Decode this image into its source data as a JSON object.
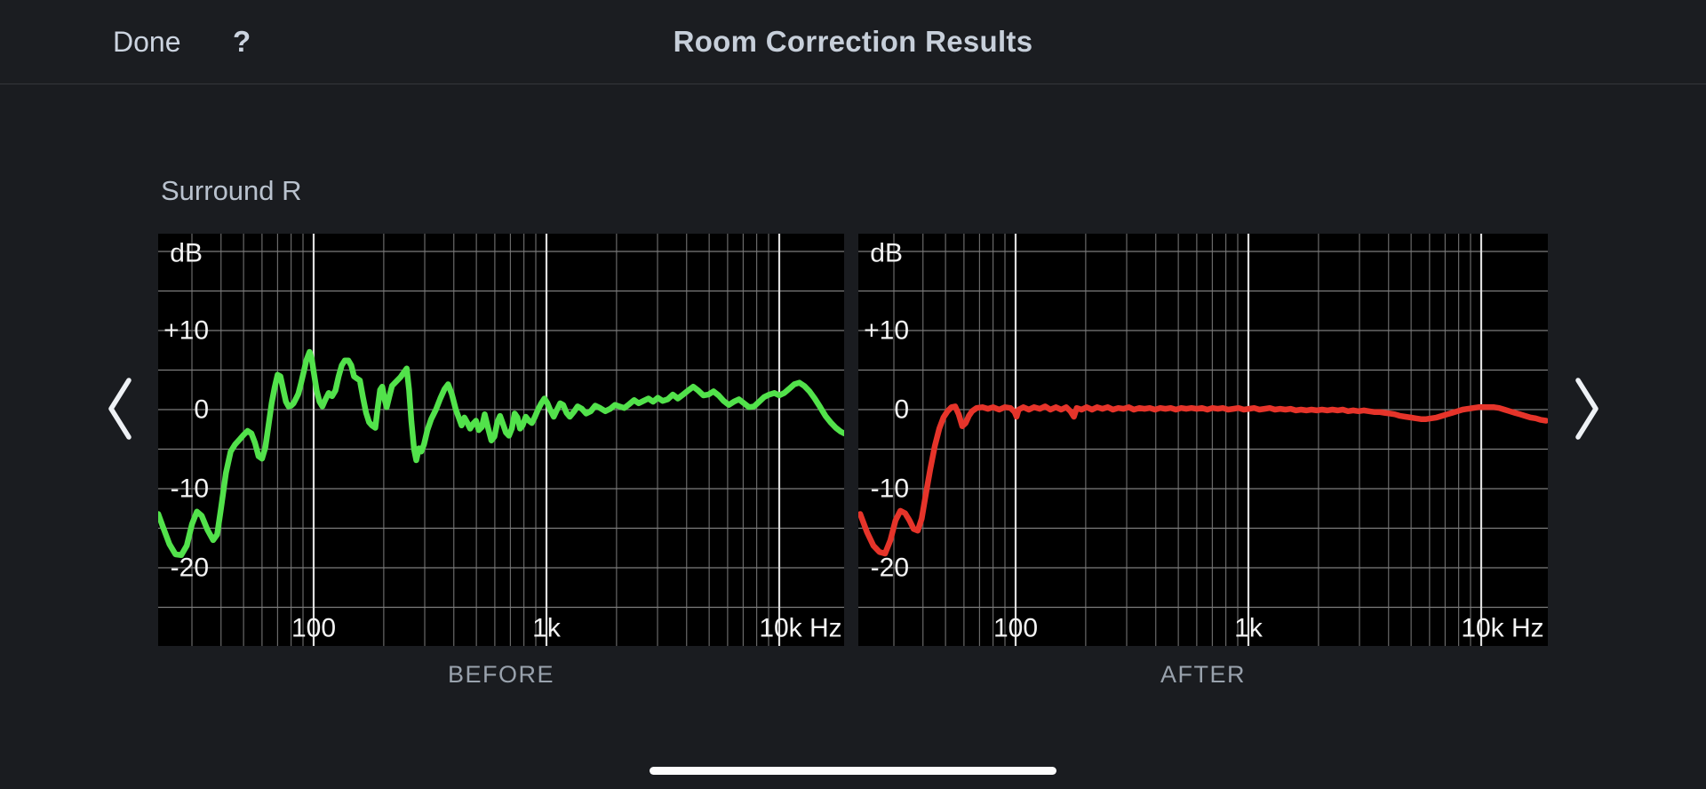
{
  "header": {
    "done_label": "Done",
    "help_label": "?",
    "title": "Room Correction Results"
  },
  "channel_label": "Surround R",
  "chart_style": {
    "plot_background": "#000000",
    "grid_minor_color": "#696969",
    "grid_horizontal_color": "#7d7d7d",
    "grid_decade_color": "#dedede",
    "tick_label_color": "#f4f4f4",
    "caption_color": "#99a2ad",
    "before_line_color": "#52e24b",
    "after_line_color": "#e6342a"
  },
  "chart_data": [
    {
      "id": "before",
      "type": "line",
      "caption": "BEFORE",
      "line_color": "#52e24b",
      "x": {
        "scale": "log",
        "min_hz": 21.5,
        "max_hz": 19000,
        "ticks": [
          {
            "hz": 100,
            "label": "100"
          },
          {
            "hz": 1000,
            "label": "1k"
          },
          {
            "hz": 10000,
            "label": "10k Hz"
          }
        ]
      },
      "y": {
        "unit": "dB",
        "min_db": -29.9,
        "max_db": 22.2,
        "grid_step_db": 5,
        "ticks": [
          {
            "db": 10,
            "label": "+10"
          },
          {
            "db": 0,
            "label": "0"
          },
          {
            "db": -10,
            "label": "-10"
          },
          {
            "db": -20,
            "label": "-20"
          }
        ]
      },
      "points": [
        [
          21.5,
          -13.2
        ],
        [
          22.5,
          -14.8
        ],
        [
          24,
          -17
        ],
        [
          25.5,
          -18.3
        ],
        [
          27,
          -18.4
        ],
        [
          28.5,
          -17.2
        ],
        [
          30,
          -14.5
        ],
        [
          31.5,
          -12.9
        ],
        [
          33,
          -13.4
        ],
        [
          35,
          -15.2
        ],
        [
          37,
          -16.5
        ],
        [
          38.5,
          -15.8
        ],
        [
          40,
          -12.5
        ],
        [
          42,
          -8
        ],
        [
          44,
          -5.3
        ],
        [
          46,
          -4.4
        ],
        [
          48,
          -3.8
        ],
        [
          50,
          -3.2
        ],
        [
          52,
          -2.7
        ],
        [
          54,
          -3
        ],
        [
          56,
          -4.2
        ],
        [
          58,
          -5.9
        ],
        [
          60,
          -6.2
        ],
        [
          62,
          -4.8
        ],
        [
          64,
          -2
        ],
        [
          66,
          0.8
        ],
        [
          68,
          2.8
        ],
        [
          70,
          4.4
        ],
        [
          72,
          4.2
        ],
        [
          74,
          2.6
        ],
        [
          76,
          1
        ],
        [
          78,
          0.4
        ],
        [
          80,
          0.5
        ],
        [
          82,
          0.8
        ],
        [
          84,
          1.4
        ],
        [
          86,
          2
        ],
        [
          88,
          3.2
        ],
        [
          91,
          5
        ],
        [
          93,
          6.2
        ],
        [
          96,
          7.3
        ],
        [
          98,
          6.5
        ],
        [
          100,
          4.8
        ],
        [
          103,
          2.4
        ],
        [
          106,
          1
        ],
        [
          109,
          0.4
        ],
        [
          112,
          1.2
        ],
        [
          116,
          2.1
        ],
        [
          120,
          1.7
        ],
        [
          124,
          2.4
        ],
        [
          128,
          4.2
        ],
        [
          132,
          5.6
        ],
        [
          136,
          6.2
        ],
        [
          141,
          6.2
        ],
        [
          145,
          5.6
        ],
        [
          149,
          4.2
        ],
        [
          154,
          3.9
        ],
        [
          158,
          3.7
        ],
        [
          163,
          1.5
        ],
        [
          168,
          -0.4
        ],
        [
          173,
          -1.6
        ],
        [
          178,
          -2
        ],
        [
          184,
          -2.3
        ],
        [
          188,
          0
        ],
        [
          193,
          2.5
        ],
        [
          197,
          2.9
        ],
        [
          202,
          1.2
        ],
        [
          206,
          0.3
        ],
        [
          211,
          1.6
        ],
        [
          217,
          3
        ],
        [
          227,
          3.6
        ],
        [
          236,
          4.1
        ],
        [
          244,
          4.7
        ],
        [
          251,
          5.2
        ],
        [
          257,
          2.5
        ],
        [
          263,
          -1.5
        ],
        [
          270,
          -5
        ],
        [
          276,
          -6.4
        ],
        [
          283,
          -4.9
        ],
        [
          290,
          -5.3
        ],
        [
          298,
          -4.4
        ],
        [
          308,
          -2.6
        ],
        [
          320,
          -1.2
        ],
        [
          335,
          0
        ],
        [
          350,
          1.4
        ],
        [
          365,
          2.6
        ],
        [
          378,
          3.2
        ],
        [
          392,
          2
        ],
        [
          408,
          0
        ],
        [
          420,
          -1
        ],
        [
          432,
          -2
        ],
        [
          444,
          -1
        ],
        [
          456,
          -1.6
        ],
        [
          470,
          -2.4
        ],
        [
          484,
          -1.8
        ],
        [
          498,
          -1.4
        ],
        [
          512,
          -2.6
        ],
        [
          528,
          -2.2
        ],
        [
          543,
          -0.6
        ],
        [
          560,
          -2.2
        ],
        [
          580,
          -3.9
        ],
        [
          598,
          -3.4
        ],
        [
          615,
          -1.6
        ],
        [
          632,
          -0.8
        ],
        [
          650,
          -1.8
        ],
        [
          670,
          -2.9
        ],
        [
          690,
          -3.3
        ],
        [
          710,
          -2.4
        ],
        [
          730,
          -0.5
        ],
        [
          750,
          -1
        ],
        [
          770,
          -2.4
        ],
        [
          790,
          -2
        ],
        [
          815,
          -0.9
        ],
        [
          840,
          -1.4
        ],
        [
          865,
          -1.7
        ],
        [
          890,
          -1
        ],
        [
          920,
          0
        ],
        [
          950,
          0.8
        ],
        [
          980,
          1.4
        ],
        [
          1010,
          0.8
        ],
        [
          1040,
          -0.1
        ],
        [
          1075,
          -0.9
        ],
        [
          1110,
          0
        ],
        [
          1145,
          0.8
        ],
        [
          1180,
          0.6
        ],
        [
          1220,
          -0.4
        ],
        [
          1260,
          -0.9
        ],
        [
          1310,
          -0.3
        ],
        [
          1360,
          0.4
        ],
        [
          1420,
          0.1
        ],
        [
          1480,
          -0.5
        ],
        [
          1550,
          -0.2
        ],
        [
          1620,
          0.5
        ],
        [
          1700,
          0.2
        ],
        [
          1790,
          -0.2
        ],
        [
          1880,
          0.1
        ],
        [
          1970,
          0.6
        ],
        [
          2060,
          0.4
        ],
        [
          2160,
          0.2
        ],
        [
          2270,
          0.7
        ],
        [
          2380,
          1.2
        ],
        [
          2490,
          0.8
        ],
        [
          2610,
          1.1
        ],
        [
          2740,
          1.4
        ],
        [
          2870,
          1
        ],
        [
          3010,
          1.5
        ],
        [
          3160,
          1.1
        ],
        [
          3320,
          1.3
        ],
        [
          3490,
          1.9
        ],
        [
          3670,
          1.4
        ],
        [
          3860,
          1.9
        ],
        [
          4060,
          2.4
        ],
        [
          4270,
          2.9
        ],
        [
          4490,
          2.4
        ],
        [
          4720,
          1.8
        ],
        [
          4960,
          1.9
        ],
        [
          5220,
          2.3
        ],
        [
          5490,
          1.8
        ],
        [
          5770,
          1.1
        ],
        [
          6070,
          0.6
        ],
        [
          6380,
          1
        ],
        [
          6710,
          1.3
        ],
        [
          7060,
          0.8
        ],
        [
          7420,
          0.3
        ],
        [
          7800,
          0.4
        ],
        [
          8200,
          1
        ],
        [
          8620,
          1.6
        ],
        [
          9060,
          1.9
        ],
        [
          9530,
          2.1
        ],
        [
          10000,
          1.8
        ],
        [
          10500,
          2.1
        ],
        [
          11000,
          2.6
        ],
        [
          11600,
          3.2
        ],
        [
          12200,
          3.4
        ],
        [
          12800,
          3
        ],
        [
          13500,
          2.3
        ],
        [
          14200,
          1.4
        ],
        [
          15000,
          0.3
        ],
        [
          15800,
          -0.8
        ],
        [
          16600,
          -1.6
        ],
        [
          17500,
          -2.3
        ],
        [
          18400,
          -2.8
        ],
        [
          19000,
          -3
        ]
      ]
    },
    {
      "id": "after",
      "type": "line",
      "caption": "AFTER",
      "line_color": "#e6342a",
      "x": {
        "scale": "log",
        "min_hz": 21.5,
        "max_hz": 19000,
        "ticks": [
          {
            "hz": 100,
            "label": "100"
          },
          {
            "hz": 1000,
            "label": "1k"
          },
          {
            "hz": 10000,
            "label": "10k Hz"
          }
        ]
      },
      "y": {
        "unit": "dB",
        "min_db": -29.9,
        "max_db": 22.2,
        "grid_step_db": 5,
        "ticks": [
          {
            "db": 10,
            "label": "+10"
          },
          {
            "db": 0,
            "label": "0"
          },
          {
            "db": -10,
            "label": "-10"
          },
          {
            "db": -20,
            "label": "-20"
          }
        ]
      },
      "points": [
        [
          21.5,
          -13.2
        ],
        [
          23,
          -15.5
        ],
        [
          24.5,
          -17.2
        ],
        [
          26,
          -18
        ],
        [
          27.5,
          -18.2
        ],
        [
          29,
          -16.5
        ],
        [
          30.5,
          -14
        ],
        [
          32,
          -12.8
        ],
        [
          33.5,
          -13.1
        ],
        [
          35,
          -14
        ],
        [
          36.5,
          -15.1
        ],
        [
          38,
          -15.3
        ],
        [
          39.5,
          -13.8
        ],
        [
          41,
          -11
        ],
        [
          43,
          -7.5
        ],
        [
          45,
          -4.6
        ],
        [
          47,
          -2.4
        ],
        [
          49,
          -1
        ],
        [
          51,
          -0.2
        ],
        [
          53,
          0.3
        ],
        [
          55,
          0.4
        ],
        [
          57,
          -0.6
        ],
        [
          59,
          -2.1
        ],
        [
          61,
          -1.7
        ],
        [
          63,
          -0.8
        ],
        [
          65,
          -0.2
        ],
        [
          68,
          0.2
        ],
        [
          72,
          0.3
        ],
        [
          76,
          0.1
        ],
        [
          80,
          0.3
        ],
        [
          85,
          0
        ],
        [
          90,
          0.3
        ],
        [
          95,
          0.2
        ],
        [
          99,
          -0.3
        ],
        [
          101,
          -0.9
        ],
        [
          103,
          0
        ],
        [
          108,
          0.3
        ],
        [
          114,
          0
        ],
        [
          120,
          0.3
        ],
        [
          127,
          0.1
        ],
        [
          134,
          0.4
        ],
        [
          141,
          0
        ],
        [
          149,
          0.3
        ],
        [
          157,
          0
        ],
        [
          165,
          0.3
        ],
        [
          172,
          -0.2
        ],
        [
          178,
          -0.9
        ],
        [
          183,
          0.2
        ],
        [
          192,
          0
        ],
        [
          202,
          0.3
        ],
        [
          213,
          0
        ],
        [
          224,
          0.3
        ],
        [
          236,
          0.1
        ],
        [
          249,
          0.3
        ],
        [
          262,
          0
        ],
        [
          276,
          0.2
        ],
        [
          291,
          0.1
        ],
        [
          306,
          0.3
        ],
        [
          322,
          0
        ],
        [
          340,
          0.2
        ],
        [
          358,
          0.1
        ],
        [
          377,
          0.2
        ],
        [
          397,
          0
        ],
        [
          418,
          0.2
        ],
        [
          440,
          0.1
        ],
        [
          464,
          0.2
        ],
        [
          488,
          0
        ],
        [
          514,
          0.2
        ],
        [
          542,
          0.1
        ],
        [
          570,
          0.2
        ],
        [
          600,
          0.1
        ],
        [
          632,
          0.2
        ],
        [
          666,
          0
        ],
        [
          701,
          0.2
        ],
        [
          738,
          0.1
        ],
        [
          777,
          0.2
        ],
        [
          818,
          0
        ],
        [
          862,
          0.1
        ],
        [
          907,
          0.2
        ],
        [
          955,
          0
        ],
        [
          1006,
          0.1
        ],
        [
          1059,
          0.2
        ],
        [
          1115,
          0
        ],
        [
          1174,
          0.1
        ],
        [
          1236,
          0.2
        ],
        [
          1301,
          0
        ],
        [
          1370,
          0.1
        ],
        [
          1443,
          0
        ],
        [
          1519,
          0.1
        ],
        [
          1599,
          -0.1
        ],
        [
          1684,
          0
        ],
        [
          1773,
          -0.1
        ],
        [
          1867,
          0
        ],
        [
          1966,
          -0.1
        ],
        [
          2070,
          0
        ],
        [
          2180,
          -0.1
        ],
        [
          2295,
          0
        ],
        [
          2416,
          -0.1
        ],
        [
          2544,
          0
        ],
        [
          2679,
          -0.2
        ],
        [
          2821,
          -0.1
        ],
        [
          2970,
          -0.2
        ],
        [
          3127,
          -0.1
        ],
        [
          3292,
          -0.2
        ],
        [
          3466,
          -0.3
        ],
        [
          3650,
          -0.3
        ],
        [
          3843,
          -0.4
        ],
        [
          4046,
          -0.5
        ],
        [
          4260,
          -0.6
        ],
        [
          4486,
          -0.8
        ],
        [
          4723,
          -0.9
        ],
        [
          4973,
          -1
        ],
        [
          5236,
          -1.1
        ],
        [
          5513,
          -1.2
        ],
        [
          5805,
          -1.2
        ],
        [
          6112,
          -1.1
        ],
        [
          6435,
          -1
        ],
        [
          6776,
          -0.8
        ],
        [
          7135,
          -0.6
        ],
        [
          7512,
          -0.4
        ],
        [
          7910,
          -0.2
        ],
        [
          8328,
          0
        ],
        [
          8769,
          0.1
        ],
        [
          9233,
          0.2
        ],
        [
          9721,
          0.3
        ],
        [
          10235,
          0.3
        ],
        [
          10777,
          0.3
        ],
        [
          11347,
          0.3
        ],
        [
          11947,
          0.2
        ],
        [
          12579,
          0
        ],
        [
          13245,
          -0.2
        ],
        [
          13946,
          -0.4
        ],
        [
          14684,
          -0.6
        ],
        [
          15461,
          -0.8
        ],
        [
          16279,
          -1
        ],
        [
          17140,
          -1.1
        ],
        [
          18047,
          -1.3
        ],
        [
          19000,
          -1.4
        ]
      ]
    }
  ]
}
